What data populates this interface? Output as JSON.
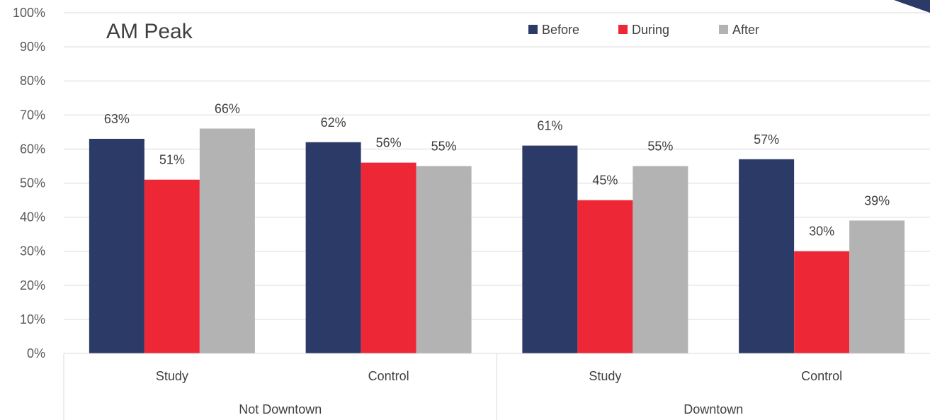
{
  "chart_data": {
    "type": "bar",
    "title": "AM Peak",
    "groups": [
      {
        "label": "Not Downtown",
        "categories": [
          "Study",
          "Control"
        ]
      },
      {
        "label": "Downtown",
        "categories": [
          "Study",
          "Control"
        ]
      }
    ],
    "categories": [
      "Study",
      "Control",
      "Study",
      "Control"
    ],
    "series": [
      {
        "name": "Before",
        "color": "#2b3a67",
        "values": [
          63,
          62,
          61,
          57
        ],
        "labels": [
          "63%",
          "62%",
          "61%",
          "57%"
        ]
      },
      {
        "name": "During",
        "color": "#ee2737",
        "values": [
          51,
          56,
          45,
          30
        ],
        "labels": [
          "51%",
          "56%",
          "45%",
          "30%"
        ]
      },
      {
        "name": "After",
        "color": "#b3b3b3",
        "values": [
          66,
          55,
          55,
          39
        ],
        "labels": [
          "66%",
          "55%",
          "55%",
          "39%"
        ]
      }
    ],
    "ylim": [
      0,
      100
    ],
    "yticks": [
      "0%",
      "10%",
      "20%",
      "30%",
      "40%",
      "50%",
      "60%",
      "70%",
      "80%",
      "90%",
      "100%"
    ],
    "grid": true,
    "legend_position": "top-right"
  }
}
